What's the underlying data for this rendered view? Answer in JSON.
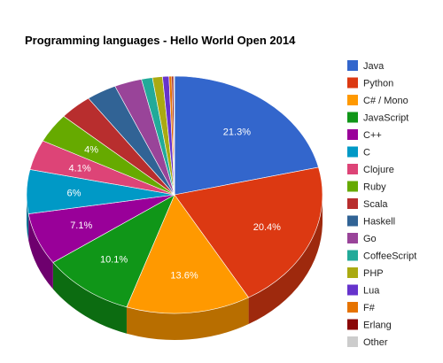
{
  "chart_data": {
    "type": "pie",
    "style": "3d",
    "title": "Programming languages - Hello World Open 2014",
    "legend_position": "right",
    "slices": [
      {
        "label": "Java",
        "value": 21.3,
        "display": "21.3%",
        "color": "#3366cc"
      },
      {
        "label": "Python",
        "value": 20.4,
        "display": "20.4%",
        "color": "#dc3912"
      },
      {
        "label": "C# / Mono",
        "value": 13.6,
        "display": "13.6%",
        "color": "#ff9900"
      },
      {
        "label": "JavaScript",
        "value": 10.1,
        "display": "10.1%",
        "color": "#109618"
      },
      {
        "label": "C++",
        "value": 7.1,
        "display": "7.1%",
        "color": "#990099"
      },
      {
        "label": "C",
        "value": 6.0,
        "display": "6%",
        "color": "#0099c6"
      },
      {
        "label": "Clojure",
        "value": 4.1,
        "display": "4.1%",
        "color": "#dd4477"
      },
      {
        "label": "Ruby",
        "value": 4.0,
        "display": "4%",
        "color": "#66aa00"
      },
      {
        "label": "Scala",
        "value": 3.6,
        "display": "",
        "color": "#b82e2e"
      },
      {
        "label": "Haskell",
        "value": 3.3,
        "display": "",
        "color": "#316395"
      },
      {
        "label": "Go",
        "value": 3.0,
        "display": "",
        "color": "#994499"
      },
      {
        "label": "CoffeeScript",
        "value": 1.2,
        "display": "",
        "color": "#22aa99"
      },
      {
        "label": "PHP",
        "value": 1.1,
        "display": "",
        "color": "#aaaa11"
      },
      {
        "label": "Lua",
        "value": 0.7,
        "display": "",
        "color": "#6633cc"
      },
      {
        "label": "F#",
        "value": 0.3,
        "display": "",
        "color": "#e67300"
      },
      {
        "label": "Erlang",
        "value": 0.2,
        "display": "",
        "color": "#8b0707"
      },
      {
        "label": "Other",
        "value": 0.1,
        "display": "",
        "color": "#cccccc"
      }
    ]
  }
}
